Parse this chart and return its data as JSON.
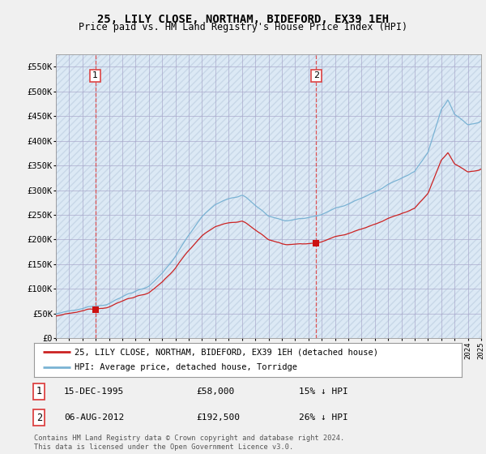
{
  "title": "25, LILY CLOSE, NORTHAM, BIDEFORD, EX39 1EH",
  "subtitle": "Price paid vs. HM Land Registry's House Price Index (HPI)",
  "legend_line1": "25, LILY CLOSE, NORTHAM, BIDEFORD, EX39 1EH (detached house)",
  "legend_line2": "HPI: Average price, detached house, Torridge",
  "transaction1_date": "15-DEC-1995",
  "transaction1_price": 58000,
  "transaction1_label": "15% ↓ HPI",
  "transaction2_date": "06-AUG-2012",
  "transaction2_price": 192500,
  "transaction2_label": "26% ↓ HPI",
  "hpi_color": "#7ab3d4",
  "price_color": "#cc2222",
  "marker_color": "#cc1111",
  "vline_color": "#dd4444",
  "background_color": "#f0f0f0",
  "plot_bg_color": "#dce9f5",
  "hatch_color": "#c8d8e8",
  "grid_color": "#aaaacc",
  "ylim": [
    0,
    575000
  ],
  "yticks": [
    0,
    50000,
    100000,
    150000,
    200000,
    250000,
    300000,
    350000,
    400000,
    450000,
    500000,
    550000
  ],
  "footer": "Contains HM Land Registry data © Crown copyright and database right 2024.\nThis data is licensed under the Open Government Licence v3.0.",
  "transaction1_year": 1995.958,
  "transaction2_year": 2012.583,
  "xstart": 1993,
  "xend": 2025
}
